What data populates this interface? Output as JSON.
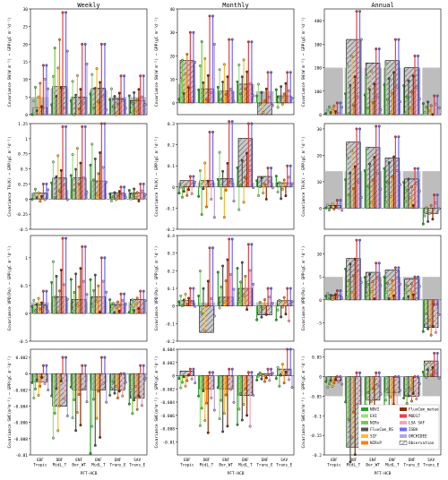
{
  "columns": [
    "Weekly",
    "Monthly",
    "Annual"
  ],
  "xlabel": "PFT-HCB",
  "groups": [
    "EBF\nTropic",
    "DBF\nMidL_T",
    "ENF\nBor_WT",
    "ENF\nMidL_T",
    "ENF\nTrans_E",
    "SAV\nTrans_E"
  ],
  "row_ylabels": [
    "Covariance SW(W m⁻²) ~ GPP(gC m⁻²d⁻¹)",
    "Covariance TA(K) ~ GPP(gC m⁻²d⁻¹)",
    "Covariance VPD(Pa) ~ GPP(gC m⁻²d⁻¹)",
    "Covariance SWC(m³m⁻³) ~ GPP(gC m⁻²d⁻¹)"
  ],
  "legend": {
    "col1": [
      "NDVI",
      "EVI",
      "NIRv",
      "FluxCom_RS",
      "SIF",
      "NIRvP"
    ],
    "col2": [
      "FluxCom_meteo",
      "MOD17",
      "LSA SAF",
      "ISBA",
      "ORCHIDEE",
      "Observation"
    ],
    "colors": {
      "NDVI": "#2ca02c",
      "EVI": "#98df8a",
      "NIRv": "#7ac943",
      "FluxCom_RS": "#555555",
      "SIF": "#ffbb33",
      "NIRvP": "#ff7f0e",
      "FluxCom_meteo": "#8c2d04",
      "MOD17": "#e8404a",
      "LSA SAF": "#f4a6c0",
      "ISBA": "#6b6bff",
      "ORCHIDEE": "#b7a4e6"
    }
  },
  "chart_data": [
    {
      "type": "bar",
      "row": 0,
      "col": 0,
      "title": "Weekly",
      "ylim": [
        0,
        30
      ],
      "yticks": [
        0,
        5,
        10,
        15,
        20,
        25,
        30
      ],
      "obs": [
        5,
        7.5,
        5,
        7,
        5,
        5
      ],
      "hcb": [
        2,
        8,
        5,
        7.5,
        4.5,
        4
      ],
      "max": [
        14,
        29,
        20,
        20,
        11,
        11
      ],
      "min": [
        0,
        0,
        0,
        0,
        0,
        0
      ]
    },
    {
      "type": "bar",
      "row": 0,
      "col": 1,
      "title": "Monthly",
      "ylim": [
        -5,
        40
      ],
      "yticks": [
        0,
        10,
        20,
        30,
        40
      ],
      "obs": [
        8,
        5,
        5,
        8,
        5,
        0
      ],
      "hcb": [
        18,
        6,
        5,
        8,
        -5,
        3
      ],
      "max": [
        30,
        37,
        27,
        26,
        13,
        13
      ],
      "min": [
        0,
        0,
        0,
        0,
        -5,
        -3
      ]
    },
    {
      "type": "bar",
      "row": 0,
      "col": 2,
      "title": "Annual",
      "ylim": [
        0,
        450
      ],
      "yticks": [
        0,
        100,
        200,
        300,
        400
      ],
      "obs": [
        200,
        200,
        200,
        200,
        200,
        200
      ],
      "hcb": [
        0,
        320,
        220,
        230,
        200,
        0
      ],
      "max": [
        50,
        440,
        280,
        320,
        250,
        80
      ],
      "min": [
        0,
        0,
        0,
        0,
        0,
        0
      ]
    },
    {
      "type": "bar",
      "row": 1,
      "col": 0,
      "ylim": [
        -0.5,
        1.25
      ],
      "yticks": [
        -0.5,
        -0.25,
        0,
        0.25,
        0.5,
        0.75,
        1.0,
        1.25
      ],
      "obs": [
        0.1,
        0.15,
        0.15,
        0.1,
        0.1,
        0.1
      ],
      "hcb": [
        0.1,
        0.35,
        0.35,
        0.3,
        0.1,
        0.1
      ],
      "max": [
        0.25,
        1.2,
        1.2,
        1.25,
        0.2,
        0.25
      ],
      "min": [
        -0.05,
        -0.05,
        -0.05,
        0,
        -0.05,
        -0.05
      ]
    },
    {
      "type": "bar",
      "row": 1,
      "col": 1,
      "ylim": [
        -0.2,
        0.3
      ],
      "yticks": [
        -0.2,
        -0.1,
        0,
        0.1,
        0.2,
        0.3
      ],
      "obs": [
        0.02,
        0.02,
        0.02,
        0.02,
        0.02,
        0.02
      ],
      "hcb": [
        0.03,
        0.03,
        0.04,
        0.23,
        0.05,
        0.02
      ],
      "max": [
        0.05,
        0.26,
        0.31,
        0.3,
        0.09,
        0.1
      ],
      "min": [
        -0.05,
        -0.18,
        -0.15,
        -0.12,
        -0.06,
        -0.06
      ]
    },
    {
      "type": "bar",
      "row": 1,
      "col": 2,
      "ylim": [
        -8,
        32
      ],
      "yticks": [
        0,
        10,
        20,
        30
      ],
      "obs": [
        14,
        14,
        14,
        14,
        14,
        14
      ],
      "hcb": [
        1,
        25,
        23,
        19,
        11,
        -2
      ],
      "max": [
        3,
        30,
        31,
        27,
        15,
        5
      ],
      "min": [
        -1,
        0,
        0,
        0,
        0,
        -6
      ]
    },
    {
      "type": "bar",
      "row": 2,
      "col": 0,
      "ylim": [
        -0.5,
        1.4
      ],
      "yticks": [
        -0.5,
        0,
        0.5,
        1.0
      ],
      "obs": [
        0.2,
        0.2,
        0.2,
        0.2,
        0.2,
        0.2
      ],
      "hcb": [
        0.15,
        0.3,
        0.25,
        0.3,
        0.15,
        0.25
      ],
      "max": [
        0.4,
        1.35,
        1.2,
        1.0,
        0.35,
        0.4
      ],
      "min": [
        0,
        0,
        0,
        0,
        0,
        0
      ]
    },
    {
      "type": "bar",
      "row": 2,
      "col": 1,
      "ylim": [
        -0.2,
        0.4
      ],
      "yticks": [
        -0.2,
        -0.1,
        0,
        0.1,
        0.2,
        0.3,
        0.4
      ],
      "obs": [
        0.02,
        0.02,
        0.02,
        0.02,
        0.02,
        0.02
      ],
      "hcb": [
        0.03,
        -0.15,
        0.05,
        0.1,
        -0.05,
        0.03
      ],
      "max": [
        0.1,
        0.33,
        0.38,
        0.35,
        0.1,
        0.1
      ],
      "min": [
        -0.02,
        -0.18,
        -0.05,
        -0.05,
        -0.08,
        -0.1
      ]
    },
    {
      "type": "bar",
      "row": 2,
      "col": 2,
      "ylim": [
        -9,
        14
      ],
      "yticks": [
        -5,
        0,
        5,
        10
      ],
      "obs": [
        5,
        5,
        5,
        5,
        5,
        5
      ],
      "hcb": [
        1,
        9,
        6,
        6.5,
        4.5,
        -6
      ],
      "max": [
        2,
        13,
        8,
        7,
        5,
        -1
      ],
      "min": [
        0,
        0,
        0,
        0,
        0,
        -8
      ]
    },
    {
      "type": "bar",
      "row": 3,
      "col": 0,
      "ylim": [
        -0.01,
        0.003
      ],
      "yticks": [
        -0.01,
        -0.008,
        -0.006,
        -0.004,
        -0.002,
        0,
        0.002
      ],
      "obs": [
        -0.001,
        -0.001,
        -0.001,
        -0.001,
        -0.001,
        -0.001
      ],
      "hcb": [
        -0.001,
        -0.004,
        -0.002,
        -0.002,
        -0.002,
        -0.003
      ],
      "max": [
        0.001,
        0.002,
        0.001,
        0.002,
        0.0,
        0.001
      ],
      "min": [
        -0.003,
        -0.009,
        -0.007,
        -0.01,
        -0.003,
        -0.005
      ]
    },
    {
      "type": "bar",
      "row": 3,
      "col": 1,
      "ylim": [
        -0.012,
        0.004
      ],
      "yticks": [
        -0.01,
        -0.008,
        -0.006,
        -0.004,
        -0.002,
        0,
        0.002,
        0.004
      ],
      "obs": [
        0,
        0,
        0,
        0,
        0,
        0
      ],
      "hcb": [
        0.0007,
        -0.002,
        -0.002,
        -0.003,
        0.0003,
        0.001
      ],
      "max": [
        0.001,
        0.0005,
        0.001,
        0.0005,
        0.001,
        0.004
      ],
      "min": [
        -0.002,
        -0.009,
        -0.009,
        -0.008,
        -0.001,
        -0.002
      ]
    },
    {
      "type": "bar",
      "row": 3,
      "col": 2,
      "ylim": [
        -0.2,
        0.07
      ],
      "yticks": [
        -0.2,
        -0.15,
        -0.1,
        -0.05,
        0,
        0.05
      ],
      "obs": [
        -0.05,
        -0.05,
        -0.05,
        -0.05,
        -0.05,
        -0.05
      ],
      "hcb": [
        -0.01,
        -0.18,
        -0.06,
        -0.04,
        -0.05,
        0.04
      ],
      "max": [
        0,
        0.01,
        0.01,
        0,
        0,
        0.06
      ],
      "min": [
        -0.03,
        -0.22,
        -0.11,
        -0.1,
        -0.07,
        -0.01
      ]
    }
  ]
}
